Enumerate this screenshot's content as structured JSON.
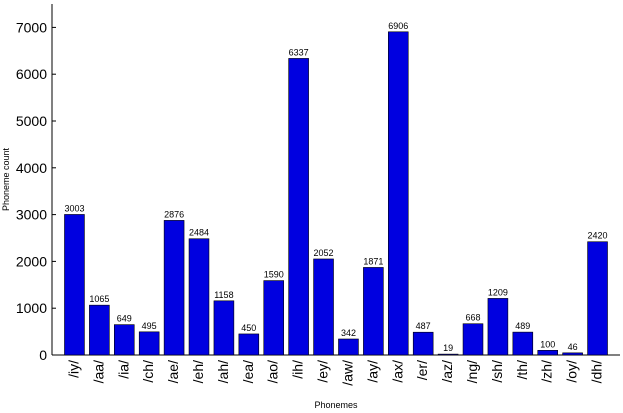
{
  "chart_data": {
    "type": "bar",
    "categories": [
      "/iy/",
      "/aa/",
      "/ia/",
      "/ch/",
      "/ae/",
      "/eh/",
      "/ah/",
      "/ea/",
      "/ao/",
      "/ih/",
      "/ey/",
      "/aw/",
      "/ay/",
      "/ax/",
      "/er/",
      "/az/",
      "/ng/",
      "/sh/",
      "/th/",
      "/zh/",
      "/oy/",
      "/dh/"
    ],
    "values": [
      3003,
      1065,
      649,
      495,
      2876,
      2484,
      1158,
      450,
      1590,
      6337,
      2052,
      342,
      1871,
      6906,
      487,
      19,
      668,
      1209,
      489,
      100,
      46,
      2420
    ],
    "data_labels": [
      "3003",
      "1065",
      "649",
      "495",
      "2876",
      "2484",
      "1158",
      "450",
      "1590",
      "6337",
      "2052",
      "342",
      "1871",
      "6906",
      "487",
      "19",
      "668",
      "1209",
      "489",
      "100",
      "46",
      "2420"
    ],
    "title": "",
    "xlabel": "Phonemes",
    "ylabel": "Phoneme count",
    "ylim": [
      0,
      7500
    ],
    "yticks": [
      0,
      1000,
      2000,
      3000,
      4000,
      5000,
      6000,
      7000
    ],
    "ytick_labels": [
      "0",
      "1000",
      "2000",
      "3000",
      "4000",
      "5000",
      "6000",
      "7000"
    ],
    "bar_color": "#0000e0",
    "grid": false,
    "legend": false
  }
}
